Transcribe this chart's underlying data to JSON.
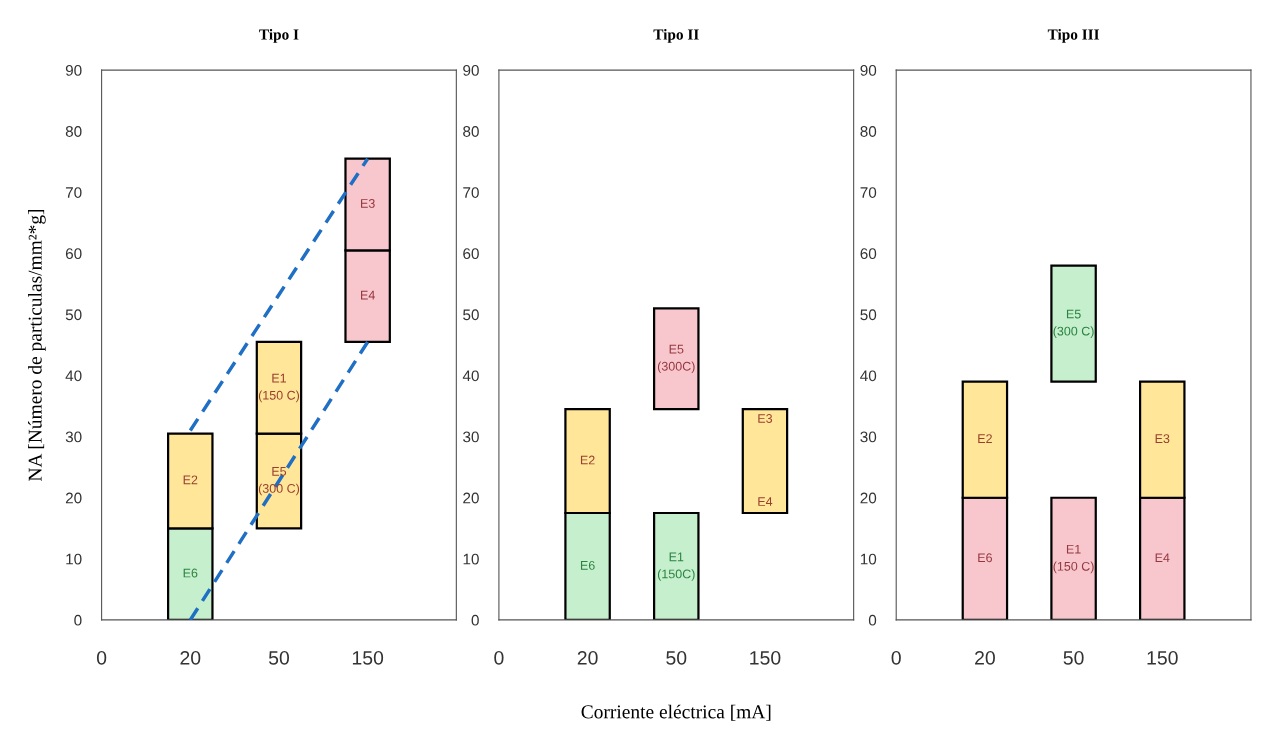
{
  "chart_data": [
    {
      "type": "bar",
      "title": "Tipo I",
      "ylabel": "NA [Número de particulas/mm²*g]",
      "categories": [
        "0",
        "20",
        "50",
        "150"
      ],
      "ylim": [
        0,
        90
      ],
      "yticks": [
        0,
        10,
        20,
        30,
        40,
        50,
        60,
        70,
        80,
        90
      ],
      "grid": false,
      "legend": false,
      "series": [
        {
          "base": [
            null,
            0,
            15,
            45.5
          ],
          "values": [
            null,
            15,
            15.5,
            15
          ],
          "colors": [
            null,
            "#c6efce",
            "#ffe699",
            "#f8c7ce"
          ],
          "value_labels": [
            null,
            "E6",
            "E5\n(300 C)",
            "E4"
          ]
        },
        {
          "base": [
            null,
            15,
            30.5,
            60.5
          ],
          "values": [
            null,
            15.5,
            15,
            15
          ],
          "colors": [
            null,
            "#ffe699",
            "#ffe699",
            "#f8c7ce"
          ],
          "value_labels": [
            null,
            "E2",
            "E1\n(150 C)",
            "E3"
          ]
        },
        {
          "type": "line",
          "x": [
            "20",
            "150"
          ],
          "values": [
            31,
            75.5
          ],
          "color": "#1f6fc5",
          "line_style": "dashed"
        },
        {
          "type": "line",
          "x": [
            "20",
            "150"
          ],
          "values": [
            0,
            45.5
          ],
          "color": "#1f6fc5",
          "line_style": "dashed"
        }
      ]
    },
    {
      "type": "bar",
      "title": "Tipo II",
      "xlabel": "Corriente eléctrica [mA]",
      "categories": [
        "0",
        "20",
        "50",
        "150"
      ],
      "ylim": [
        0,
        90
      ],
      "yticks": [
        0,
        10,
        20,
        30,
        40,
        50,
        60,
        70,
        80,
        90
      ],
      "grid": false,
      "legend": false,
      "series": [
        {
          "base": [
            null,
            0,
            0,
            17.5
          ],
          "values": [
            null,
            17.5,
            17.5,
            17
          ],
          "colors": [
            null,
            "#c6efce",
            "#c6efce",
            "#ffe699"
          ],
          "value_labels": [
            null,
            "E6",
            "E1\n(150C)",
            [
              "E3",
              "E4"
            ]
          ]
        },
        {
          "base": [
            null,
            17.5,
            34.5,
            null
          ],
          "values": [
            null,
            17,
            16.5,
            null
          ],
          "colors": [
            null,
            "#ffe699",
            "#f8c7ce",
            null
          ],
          "value_labels": [
            null,
            "E2",
            "E5\n(300C)",
            null
          ]
        }
      ]
    },
    {
      "type": "bar",
      "title": "Tipo III",
      "categories": [
        "0",
        "20",
        "50",
        "150"
      ],
      "ylim": [
        0,
        90
      ],
      "yticks": [
        0,
        10,
        20,
        30,
        40,
        50,
        60,
        70,
        80,
        90
      ],
      "grid": false,
      "legend": false,
      "series": [
        {
          "base": [
            null,
            0,
            0,
            0
          ],
          "values": [
            null,
            20,
            20,
            20
          ],
          "colors": [
            null,
            "#f8c7ce",
            "#f8c7ce",
            "#f8c7ce"
          ],
          "value_labels": [
            null,
            "E6",
            "E1\n(150 C)",
            "E4"
          ]
        },
        {
          "base": [
            null,
            20,
            39,
            20
          ],
          "values": [
            null,
            19,
            19,
            19
          ],
          "colors": [
            null,
            "#ffe699",
            "#c6efce",
            "#ffe699"
          ],
          "value_labels": [
            null,
            "E2",
            "E5\n(300 C)",
            "E3"
          ]
        }
      ]
    }
  ]
}
